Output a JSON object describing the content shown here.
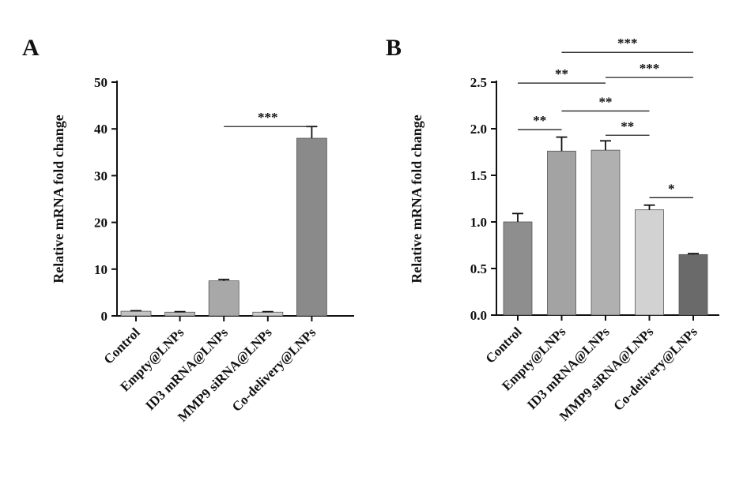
{
  "chart_data": [
    {
      "type": "bar",
      "panel_label": "A",
      "categories": [
        "Control",
        "Empty@LNPs",
        "ID3 mRNA@LNPs",
        "MMP9 siRNA@LNPs",
        "Co-delivery@LNPs"
      ],
      "values": [
        1.0,
        0.8,
        7.5,
        0.8,
        38.0
      ],
      "errors": [
        0.1,
        0.1,
        0.3,
        0.1,
        2.5
      ],
      "ylabel": "Relative mRNA fold change",
      "xlabel": "",
      "ylim": [
        0,
        50
      ],
      "yticks": [
        0,
        10,
        20,
        30,
        40,
        50
      ],
      "bar_colors": [
        "#c2c2c2",
        "#bcbcbc",
        "#a8a8a8",
        "#cfcfcf",
        "#8a8a8a"
      ],
      "grid": false,
      "significance": [
        {
          "from": 2,
          "to": 4,
          "label": "***"
        }
      ]
    },
    {
      "type": "bar",
      "panel_label": "B",
      "categories": [
        "Control",
        "Empty@LNPs",
        "ID3 mRNA@LNPs",
        "MMP9 siRNA@LNPs",
        "Co-delivery@LNPs"
      ],
      "values": [
        1.0,
        1.76,
        1.77,
        1.13,
        0.65
      ],
      "errors": [
        0.09,
        0.15,
        0.1,
        0.05,
        0.01
      ],
      "ylabel": "Relative mRNA fold change",
      "xlabel": "",
      "ylim": [
        0,
        2.5
      ],
      "yticks": [
        "0.0",
        "0.5",
        "1.0",
        "1.5",
        "2.0",
        "2.5"
      ],
      "bar_colors": [
        "#8e8e8e",
        "#a3a3a3",
        "#b0b0b0",
        "#d2d2d2",
        "#6a6a6a"
      ],
      "grid": false,
      "significance": [
        {
          "from": 0,
          "to": 1,
          "label": "**",
          "level": 1.99
        },
        {
          "from": 0,
          "to": 2,
          "label": "**",
          "level": 2.49
        },
        {
          "from": 1,
          "to": 3,
          "label": "**",
          "level": 2.19
        },
        {
          "from": 2,
          "to": 3,
          "label": "**",
          "level": 1.93
        },
        {
          "from": 3,
          "to": 4,
          "label": "*",
          "level": 1.26
        },
        {
          "from": 1,
          "to": 4,
          "label": "***",
          "level": 2.82
        },
        {
          "from": 2,
          "to": 4,
          "label": "***",
          "level": 2.55
        }
      ]
    }
  ]
}
